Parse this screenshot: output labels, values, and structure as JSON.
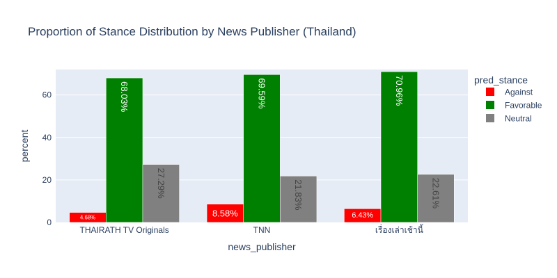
{
  "chart_data": {
    "type": "bar",
    "title": "Proportion of Stance Distribution by News Publisher (Thailand)",
    "xlabel": "news_publisher",
    "ylabel": "percent",
    "categories": [
      "THAIRATH TV Originals",
      "TNN",
      "เรื่องเล่าเช้านี้"
    ],
    "ylim": [
      0,
      72
    ],
    "yticks": [
      0,
      20,
      40,
      60
    ],
    "grid": true,
    "legend_title": "pred_stance",
    "legend_position": "top-right",
    "series": [
      {
        "name": "Against",
        "color": "#ff0000",
        "values": [
          4.68,
          8.58,
          6.43
        ],
        "labels": [
          "4.68%",
          "8.58%",
          "6.43%"
        ]
      },
      {
        "name": "Favorable",
        "color": "#008000",
        "values": [
          68.03,
          69.59,
          70.96
        ],
        "labels": [
          "68.03%",
          "69.59%",
          "70.96%"
        ]
      },
      {
        "name": "Neutral",
        "color": "#808080",
        "values": [
          27.29,
          21.83,
          22.61
        ],
        "labels": [
          "27.29%",
          "21.83%",
          "22.61%"
        ]
      }
    ]
  }
}
